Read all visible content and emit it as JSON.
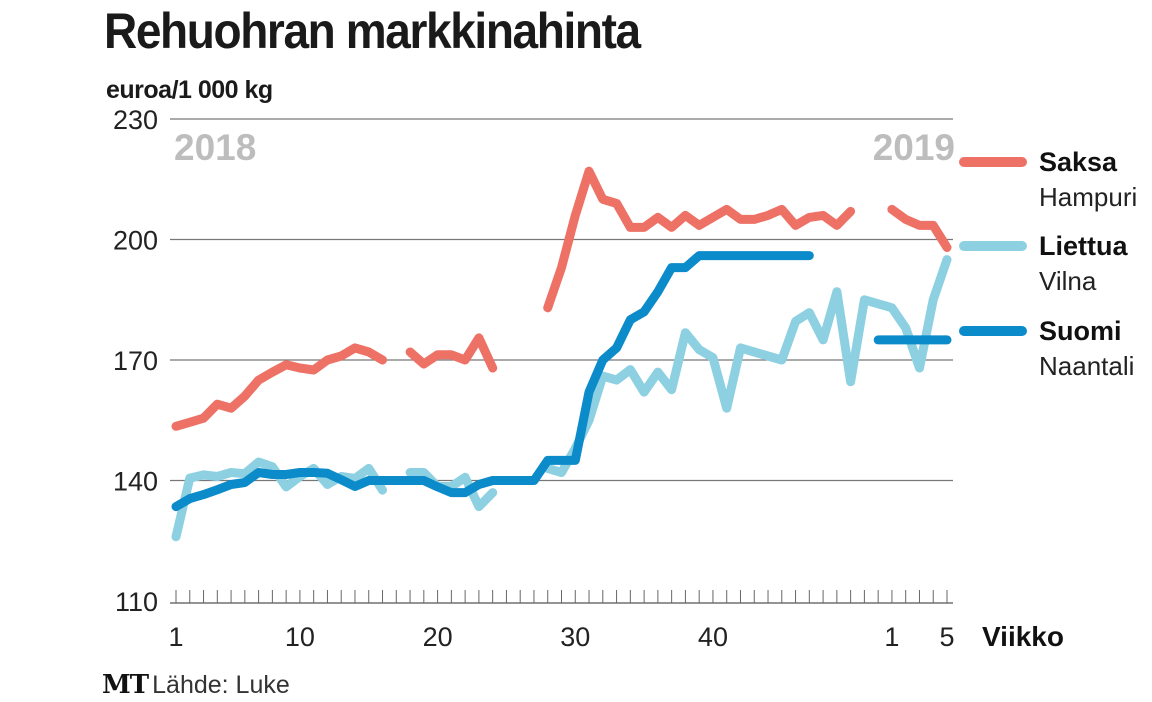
{
  "chart_data": {
    "type": "line",
    "title": "Rehuohran markkinahinta",
    "ylabel": "euroa/1 000 kg",
    "xlabel": "Viikko",
    "source": "Lähde: Luke",
    "logo": "MT",
    "year_labels": [
      "2018",
      "2019"
    ],
    "ylim": [
      110,
      230
    ],
    "yticks": [
      "110",
      "140",
      "170",
      "200",
      "230"
    ],
    "grid": true,
    "legend_position": "right",
    "x": [
      1,
      2,
      3,
      4,
      5,
      6,
      7,
      8,
      9,
      10,
      11,
      12,
      13,
      14,
      15,
      16,
      17,
      18,
      19,
      20,
      21,
      22,
      23,
      24,
      25,
      26,
      27,
      28,
      29,
      30,
      31,
      32,
      33,
      34,
      35,
      36,
      37,
      38,
      39,
      40,
      41,
      42,
      43,
      44,
      45,
      46,
      47,
      48,
      49,
      50,
      51,
      52,
      1,
      2,
      3,
      4,
      5
    ],
    "xtick_labels": [
      {
        "index": 0,
        "label": "1"
      },
      {
        "index": 9,
        "label": "10"
      },
      {
        "index": 19,
        "label": "20"
      },
      {
        "index": 29,
        "label": "30"
      },
      {
        "index": 39,
        "label": "40"
      },
      {
        "index": 52,
        "label": "1"
      },
      {
        "index": 56,
        "label": "5"
      }
    ],
    "series": [
      {
        "name": "Saksa",
        "sub": "Hampuri",
        "color": "#ee7166",
        "values": [
          153.5,
          154.5,
          155.5,
          159,
          158,
          161,
          165,
          167,
          168.8,
          168,
          167.5,
          170,
          171,
          173,
          172,
          170,
          null,
          172,
          169,
          171.3,
          171.3,
          170,
          175.5,
          168,
          null,
          null,
          null,
          183,
          193,
          206,
          217,
          210,
          209,
          203,
          203,
          205.5,
          203,
          206,
          203.5,
          205.5,
          207.5,
          205,
          205,
          206,
          207.5,
          203.5,
          205.5,
          206,
          203.5,
          207,
          null,
          null,
          207.5,
          205,
          203.5,
          203.5,
          198
        ]
      },
      {
        "name": "Liettua",
        "sub": "Vilna",
        "color": "#8dd0e1",
        "values": [
          126,
          140.6,
          141.4,
          141,
          142,
          141.7,
          144.6,
          143.4,
          138.4,
          141,
          143,
          139,
          141,
          140.5,
          143,
          137.6,
          null,
          142,
          142,
          138.5,
          138.5,
          140.8,
          133.5,
          137,
          null,
          null,
          null,
          143,
          142,
          148,
          155,
          166,
          165,
          167.6,
          162,
          167,
          162.6,
          176.8,
          172.6,
          170.6,
          158,
          173,
          172,
          171,
          170,
          179.6,
          181.8,
          175,
          187,
          164.6,
          185,
          184,
          183,
          178,
          168,
          185,
          195
        ]
      },
      {
        "name": "Suomi",
        "sub": "Naantali",
        "color": "#0b8bc9",
        "values": [
          133.5,
          135.5,
          136.5,
          137.7,
          139,
          139.5,
          142,
          141.5,
          141.5,
          142,
          142,
          141.8,
          140.2,
          138.5,
          140,
          140,
          140,
          140,
          140,
          138.4,
          137,
          137,
          139,
          140,
          140,
          140,
          140,
          145,
          145,
          145,
          162,
          170,
          173,
          180,
          182,
          187,
          193,
          193,
          196,
          196,
          196,
          196,
          196,
          196,
          196,
          196,
          196,
          null,
          null,
          null,
          null,
          175,
          175,
          175,
          175,
          175,
          175
        ]
      }
    ]
  }
}
